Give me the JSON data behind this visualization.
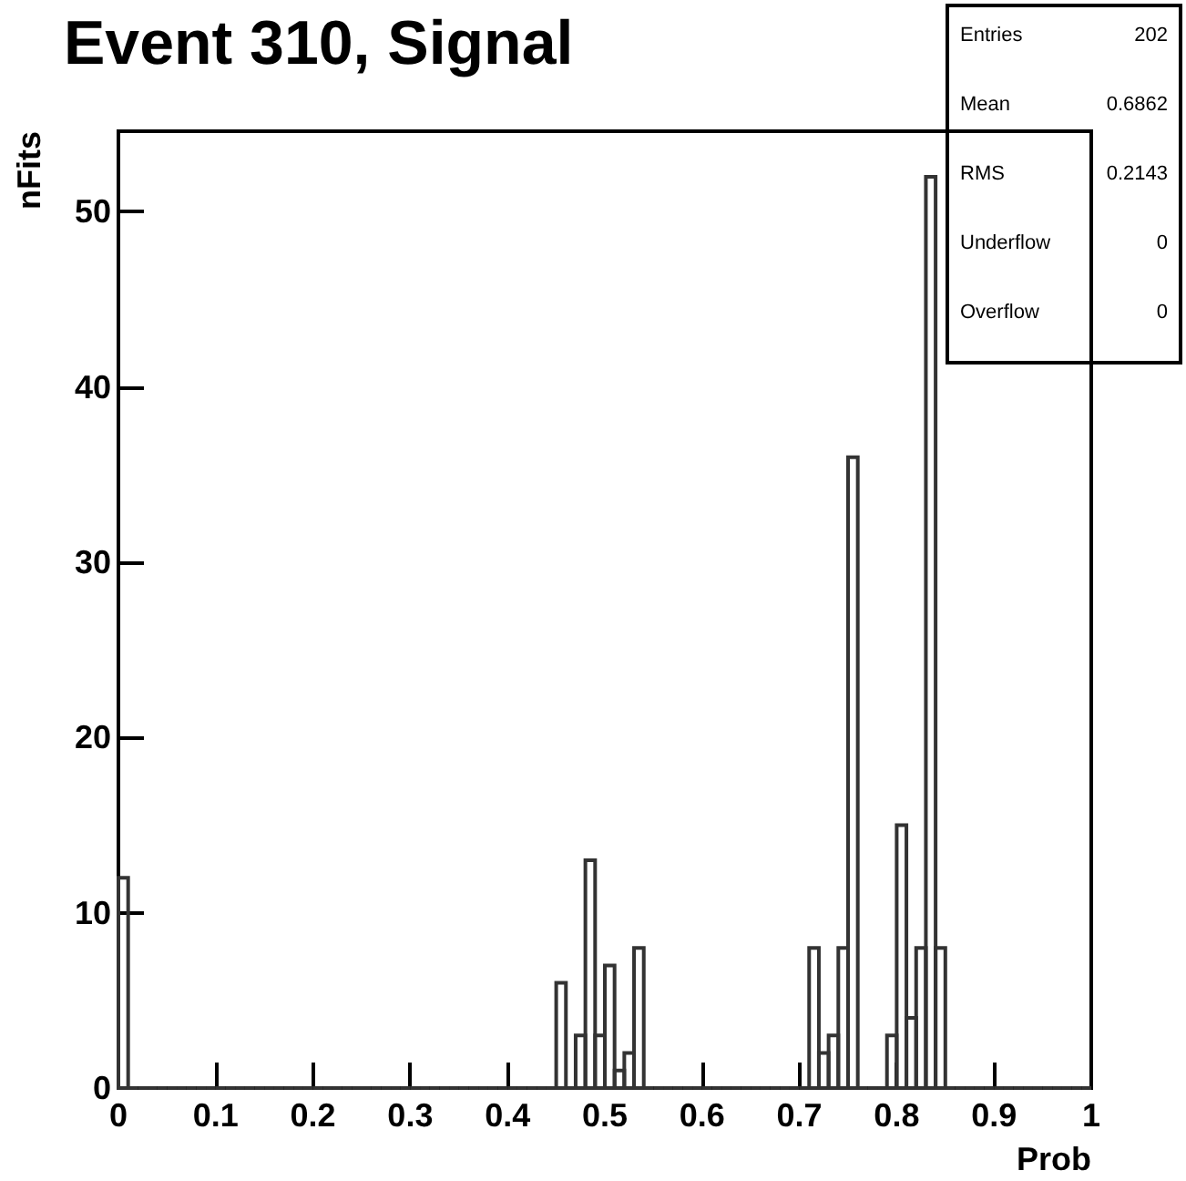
{
  "chart_data": {
    "type": "histogram",
    "title": "Event 310, Signal",
    "xlabel": "Prob",
    "ylabel": "nFits",
    "annotations": [
      "Entries 202",
      "Mean 0.6862",
      "RMS 0.2143",
      "Underflow 0",
      "Overflow 0"
    ],
    "bins": [
      0,
      0.01,
      0.02,
      0.03,
      0.04,
      0.05,
      0.06,
      0.07,
      0.08,
      0.09,
      0.1,
      0.11,
      0.12,
      0.13,
      0.14,
      0.15,
      0.16,
      0.17,
      0.18,
      0.19,
      0.2,
      0.21,
      0.22,
      0.23,
      0.24,
      0.25,
      0.26,
      0.27,
      0.28,
      0.29,
      0.3,
      0.31,
      0.32,
      0.33,
      0.34,
      0.35,
      0.36,
      0.37,
      0.38,
      0.39,
      0.4,
      0.41,
      0.42,
      0.43,
      0.44,
      0.45,
      0.46,
      0.47,
      0.48,
      0.49,
      0.5,
      0.51,
      0.52,
      0.53,
      0.54,
      0.55,
      0.56,
      0.57,
      0.58,
      0.59,
      0.6,
      0.61,
      0.62,
      0.63,
      0.64,
      0.65,
      0.66,
      0.67,
      0.68,
      0.69,
      0.7,
      0.71,
      0.72,
      0.73,
      0.74,
      0.75,
      0.76,
      0.77,
      0.78,
      0.79,
      0.8,
      0.81,
      0.82,
      0.83,
      0.84,
      0.85,
      0.86,
      0.87,
      0.88,
      0.89,
      0.9,
      0.91,
      0.92,
      0.93,
      0.94,
      0.95,
      0.96,
      0.97,
      0.98,
      0.99,
      1
    ],
    "values": [
      12,
      0,
      0,
      0,
      0,
      0,
      0,
      0,
      0,
      0,
      0,
      0,
      0,
      0,
      0,
      0,
      0,
      0,
      0,
      0,
      0,
      0,
      0,
      0,
      0,
      0,
      0,
      0,
      0,
      0,
      0,
      0,
      0,
      0,
      0,
      0,
      0,
      0,
      0,
      0,
      0,
      0,
      0,
      0,
      0,
      6,
      0,
      3,
      13,
      3,
      7,
      1,
      2,
      8,
      0,
      0,
      0,
      0,
      0,
      0,
      0,
      0,
      0,
      0,
      0,
      0,
      0,
      0,
      0,
      0,
      0,
      8,
      2,
      3,
      8,
      36,
      0,
      0,
      0,
      3,
      15,
      4,
      8,
      52,
      8,
      0,
      0,
      0,
      0,
      0,
      0,
      0,
      0,
      0,
      0,
      0,
      0,
      0,
      0,
      0
    ],
    "color": "#333333",
    "xlim": [
      0,
      1
    ],
    "xticks": [
      0,
      {
        "value": 0.1,
        "label": "0.1"
      },
      {
        "value": 0.2,
        "label": "0.2"
      },
      {
        "value": 0.3,
        "label": "0.3"
      },
      {
        "value": 0.4,
        "label": "0.4"
      },
      {
        "value": 0.5,
        "label": "0.5"
      },
      {
        "value": 0.6,
        "label": "0.6"
      },
      {
        "value": 0.7,
        "label": "0.7"
      },
      {
        "value": 0.8,
        "label": "0.8"
      },
      {
        "value": 0.9,
        "label": "0.9"
      },
      1
    ],
    "ylim": [
      0,
      54.6
    ],
    "yticks": [
      0,
      10,
      20,
      30,
      40,
      50
    ],
    "grid": false
  }
}
